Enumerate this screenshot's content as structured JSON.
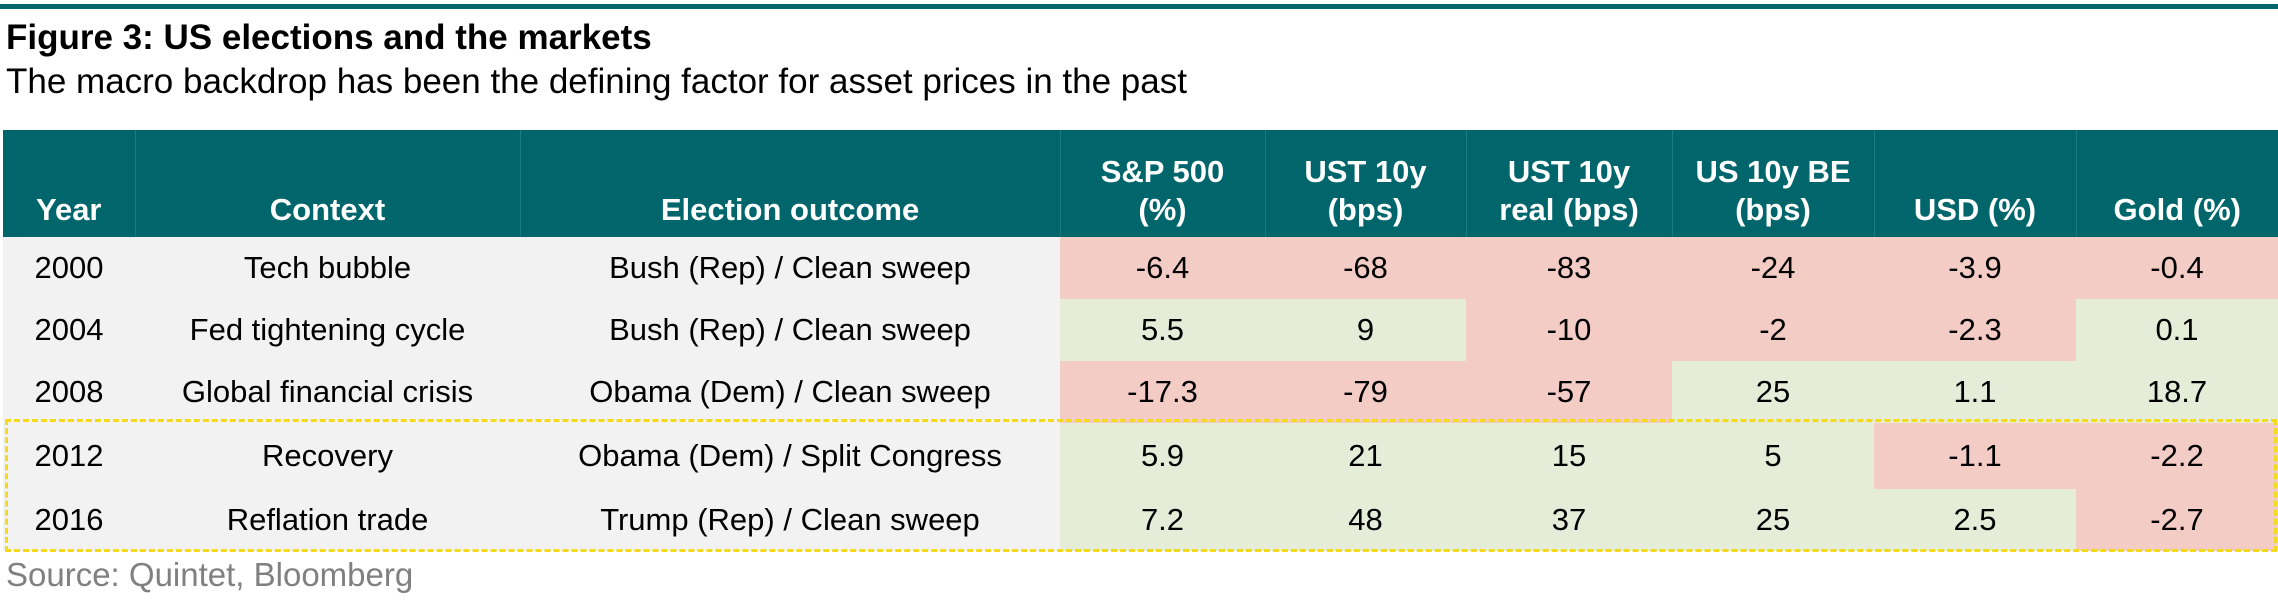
{
  "figure": {
    "title": "Figure 3: US elections and the markets",
    "subtitle": "The macro backdrop has been the defining factor for asset prices in the past",
    "source": "Source: Quintet, Bloomberg"
  },
  "colors": {
    "header_bg": "#00666b",
    "negative_bg": "#f4ccc6",
    "positive_bg": "#e5edd8",
    "context_bg": "#f2f2f2",
    "highlight_border": "#f4da1c"
  },
  "table": {
    "headers": {
      "year": "Year",
      "context": "Context",
      "outcome": "Election outcome",
      "sp500_line1": "S&P 500",
      "sp500_line2": "(%)",
      "ust10_line1": "UST 10y",
      "ust10_line2": "(bps)",
      "real_line1": "UST 10y",
      "real_line2": "real (bps)",
      "be_line1": "US 10y BE",
      "be_line2": "(bps)",
      "usd": "USD (%)",
      "gold": "Gold (%)"
    },
    "rows": [
      {
        "year": "2000",
        "context": "Tech bubble",
        "outcome": "Bush (Rep) / Clean sweep",
        "sp500": "-6.4",
        "ust10": "-68",
        "real": "-83",
        "be": "-24",
        "usd": "-3.9",
        "gold": "-0.4"
      },
      {
        "year": "2004",
        "context": "Fed tightening cycle",
        "outcome": "Bush (Rep) / Clean sweep",
        "sp500": "5.5",
        "ust10": "9",
        "real": "-10",
        "be": "-2",
        "usd": "-2.3",
        "gold": "0.1"
      },
      {
        "year": "2008",
        "context": "Global financial crisis",
        "outcome": "Obama (Dem) / Clean sweep",
        "sp500": "-17.3",
        "ust10": "-79",
        "real": "-57",
        "be": "25",
        "usd": "1.1",
        "gold": "18.7"
      },
      {
        "year": "2012",
        "context": "Recovery",
        "outcome": "Obama (Dem) / Split Congress",
        "sp500": "5.9",
        "ust10": "21",
        "real": "15",
        "be": "5",
        "usd": "-1.1",
        "gold": "-2.2"
      },
      {
        "year": "2016",
        "context": "Reflation trade",
        "outcome": "Trump (Rep) / Clean sweep",
        "sp500": "7.2",
        "ust10": "48",
        "real": "37",
        "be": "25",
        "usd": "2.5",
        "gold": "-2.7"
      }
    ]
  }
}
